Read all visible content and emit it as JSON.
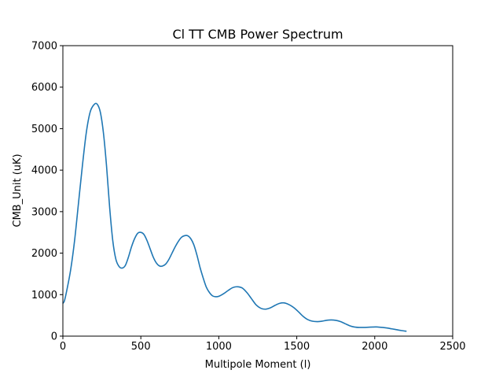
{
  "chart_data": {
    "type": "line",
    "title": "Cl TT CMB Power Spectrum",
    "xlabel": "Multipole Moment (l)",
    "ylabel": "CMB_Unit (uK)",
    "xlim": [
      0,
      2500
    ],
    "ylim": [
      0,
      7000
    ],
    "xticks": [
      0,
      500,
      1000,
      1500,
      2000,
      2500
    ],
    "yticks": [
      0,
      1000,
      2000,
      3000,
      4000,
      5000,
      6000,
      7000
    ],
    "xtick_labels": [
      "0",
      "500",
      "1000",
      "1500",
      "2000",
      "2500"
    ],
    "ytick_labels": [
      "0",
      "1000",
      "2000",
      "3000",
      "4000",
      "5000",
      "6000",
      "7000"
    ],
    "grid": false,
    "legend": "none",
    "series": [
      {
        "color": "#1f77b4",
        "x": [
          2,
          10,
          25,
          50,
          75,
          100,
          125,
          150,
          175,
          200,
          220,
          240,
          260,
          280,
          300,
          320,
          340,
          360,
          380,
          400,
          420,
          440,
          460,
          480,
          500,
          520,
          540,
          560,
          580,
          600,
          620,
          640,
          660,
          680,
          700,
          720,
          740,
          760,
          780,
          800,
          820,
          840,
          860,
          880,
          900,
          920,
          940,
          960,
          980,
          1000,
          1030,
          1060,
          1090,
          1120,
          1150,
          1180,
          1210,
          1240,
          1270,
          1300,
          1330,
          1360,
          1390,
          1420,
          1450,
          1480,
          1510,
          1540,
          1570,
          1600,
          1630,
          1660,
          1690,
          1720,
          1750,
          1780,
          1810,
          1840,
          1870,
          1900,
          1930,
          1960,
          1990,
          2020,
          2050,
          2080,
          2110,
          2140,
          2170,
          2200
        ],
        "y": [
          800,
          850,
          1100,
          1600,
          2300,
          3200,
          4100,
          4900,
          5400,
          5580,
          5590,
          5400,
          4900,
          4100,
          3100,
          2300,
          1850,
          1680,
          1640,
          1700,
          1900,
          2150,
          2350,
          2480,
          2500,
          2450,
          2300,
          2100,
          1900,
          1760,
          1690,
          1690,
          1740,
          1850,
          2000,
          2150,
          2280,
          2380,
          2420,
          2420,
          2350,
          2200,
          1950,
          1650,
          1400,
          1180,
          1050,
          970,
          950,
          960,
          1020,
          1100,
          1170,
          1190,
          1160,
          1050,
          900,
          750,
          670,
          650,
          680,
          740,
          790,
          800,
          760,
          690,
          590,
          480,
          400,
          360,
          350,
          360,
          380,
          390,
          380,
          350,
          300,
          250,
          220,
          210,
          210,
          215,
          220,
          220,
          210,
          195,
          175,
          155,
          135,
          120
        ]
      }
    ]
  }
}
